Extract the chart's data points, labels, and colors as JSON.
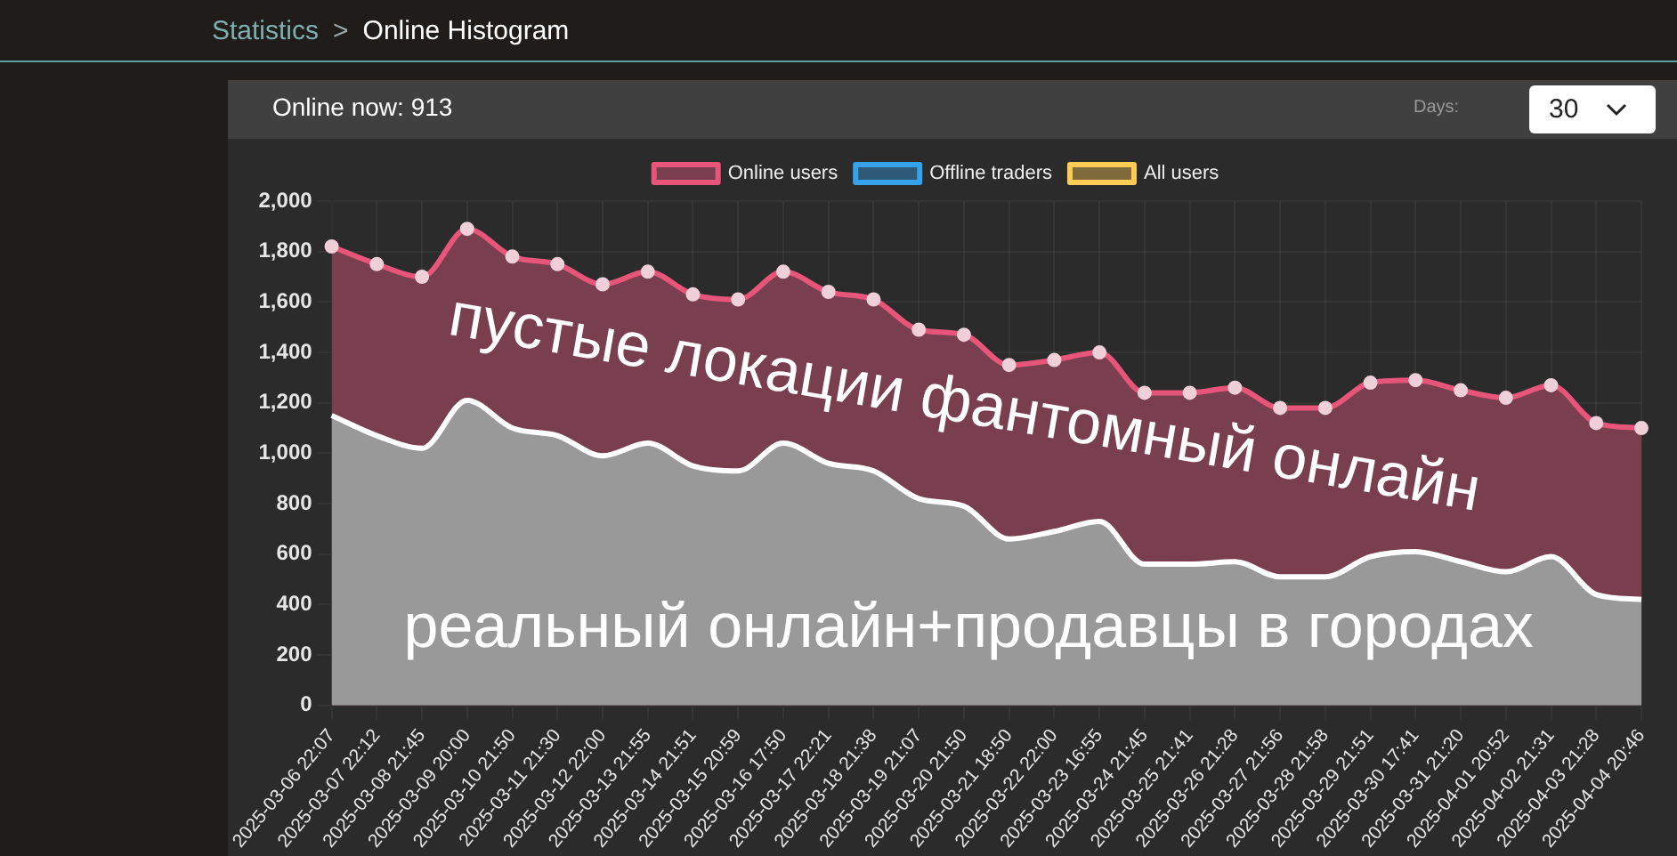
{
  "chart_data": {
    "type": "area",
    "title": "Online Histogram",
    "subtitle": "Online now: 913",
    "annotations": [
      "Statistics",
      ">",
      "Days:",
      "30",
      "пустые локации фантомный онлайн",
      "реальный онлайн+продавцы в городах"
    ],
    "categories": [
      "2025-03-06 22:07",
      "2025-03-07 22:12",
      "2025-03-08 21:45",
      "2025-03-09 20:00",
      "2025-03-10 21:50",
      "2025-03-11 21:30",
      "2025-03-12 22:00",
      "2025-03-13 21:55",
      "2025-03-14 21:51",
      "2025-03-15 20:59",
      "2025-03-16 17:50",
      "2025-03-17 22:21",
      "2025-03-18 21:38",
      "2025-03-19 21:07",
      "2025-03-20 21:50",
      "2025-03-21 18:50",
      "2025-03-22 22:00",
      "2025-03-23 16:55",
      "2025-03-24 21:45",
      "2025-03-25 21:41",
      "2025-03-26 21:28",
      "2025-03-27 21:56",
      "2025-03-28 21:58",
      "2025-03-29 21:51",
      "2025-03-30 17:41",
      "2025-03-31 21:20",
      "2025-04-01 20:52",
      "2025-04-02 21:31",
      "2025-04-03 21:28",
      "2025-04-04 20:46"
    ],
    "series": [
      {
        "name": "Online users",
        "color": "#e8557a",
        "values": [
          1820,
          1750,
          1700,
          1890,
          1780,
          1750,
          1670,
          1720,
          1630,
          1610,
          1720,
          1640,
          1610,
          1490,
          1470,
          1350,
          1370,
          1400,
          1240,
          1240,
          1260,
          1180,
          1180,
          1280,
          1290,
          1250,
          1220,
          1270,
          1120,
          1100
        ]
      },
      {
        "name": "Offline traders",
        "color": "#36a2eb",
        "values": [
          null,
          null,
          null,
          null,
          null,
          null,
          null,
          null,
          null,
          null,
          null,
          null,
          null,
          null,
          null,
          null,
          null,
          null,
          null,
          null,
          null,
          null,
          null,
          null,
          null,
          null,
          null,
          null,
          null,
          null
        ]
      },
      {
        "name": "All users",
        "color": "#ffcd56",
        "values": [
          null,
          null,
          null,
          null,
          null,
          null,
          null,
          null,
          null,
          null,
          null,
          null,
          null,
          null,
          null,
          null,
          null,
          null,
          null,
          null,
          null,
          null,
          null,
          null,
          null,
          null,
          null,
          null,
          null,
          null
        ]
      },
      {
        "color": "#ffffff",
        "marker": "none",
        "values": [
          1150,
          1070,
          1020,
          1210,
          1100,
          1070,
          990,
          1040,
          950,
          930,
          1040,
          960,
          930,
          820,
          790,
          660,
          690,
          730,
          560,
          560,
          570,
          510,
          510,
          590,
          610,
          570,
          530,
          590,
          440,
          420
        ]
      }
    ],
    "ylim": [
      0,
      2000
    ],
    "yticks": [
      0,
      200,
      400,
      600,
      800,
      {
        "value": 1000,
        "label": "1,000"
      },
      {
        "value": 1200,
        "label": "1,200"
      },
      {
        "value": 1400,
        "label": "1,400"
      },
      {
        "value": 1600,
        "label": "1,600"
      },
      {
        "value": 1800,
        "label": "1,800"
      },
      {
        "value": 2000,
        "label": "2,000"
      }
    ],
    "grid": true,
    "legend": "top",
    "marker": "circle"
  }
}
